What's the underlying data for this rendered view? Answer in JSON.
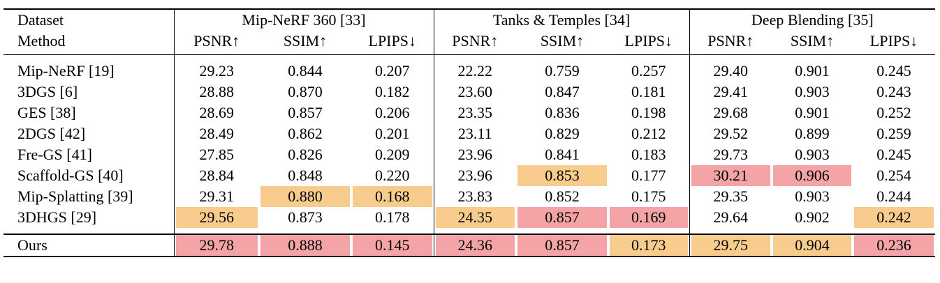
{
  "header": {
    "row1_label": "Dataset",
    "row2_label": "Method",
    "groups": [
      "Mip-NeRF 360 [33]",
      "Tanks & Temples [34]",
      "Deep Blending [35]"
    ],
    "metrics": [
      "PSNR↑",
      "SSIM↑",
      "LPIPS↓",
      "PSNR↑",
      "SSIM↑",
      "LPIPS↓",
      "PSNR↑",
      "SSIM↑",
      "LPIPS↓"
    ]
  },
  "highlight_colors": {
    "first": "#f4a4a6",
    "second": "#f8cc8c"
  },
  "rows": [
    {
      "method": "Mip-NeRF [19]",
      "values": [
        "29.23",
        "0.844",
        "0.207",
        "22.22",
        "0.759",
        "0.257",
        "29.40",
        "0.901",
        "0.245"
      ],
      "hl": [
        "",
        "",
        "",
        "",
        "",
        "",
        "",
        "",
        ""
      ]
    },
    {
      "method": "3DGS [6]",
      "values": [
        "28.88",
        "0.870",
        "0.182",
        "23.60",
        "0.847",
        "0.181",
        "29.41",
        "0.903",
        "0.243"
      ],
      "hl": [
        "",
        "",
        "",
        "",
        "",
        "",
        "",
        "",
        ""
      ]
    },
    {
      "method": "GES [38]",
      "values": [
        "28.69",
        "0.857",
        "0.206",
        "23.35",
        "0.836",
        "0.198",
        "29.68",
        "0.901",
        "0.252"
      ],
      "hl": [
        "",
        "",
        "",
        "",
        "",
        "",
        "",
        "",
        ""
      ]
    },
    {
      "method": "2DGS [42]",
      "values": [
        "28.49",
        "0.862",
        "0.201",
        "23.11",
        "0.829",
        "0.212",
        "29.52",
        "0.899",
        "0.259"
      ],
      "hl": [
        "",
        "",
        "",
        "",
        "",
        "",
        "",
        "",
        ""
      ]
    },
    {
      "method": "Fre-GS [41]",
      "values": [
        "27.85",
        "0.826",
        "0.209",
        "23.96",
        "0.841",
        "0.183",
        "29.73",
        "0.903",
        "0.245"
      ],
      "hl": [
        "",
        "",
        "",
        "",
        "",
        "",
        "",
        "",
        ""
      ]
    },
    {
      "method": "Scaffold-GS [40]",
      "values": [
        "28.84",
        "0.848",
        "0.220",
        "23.96",
        "0.853",
        "0.177",
        "30.21",
        "0.906",
        "0.254"
      ],
      "hl": [
        "",
        "",
        "",
        "",
        "second",
        "",
        "first",
        "first",
        ""
      ]
    },
    {
      "method": "Mip-Splatting [39]",
      "values": [
        "29.31",
        "0.880",
        "0.168",
        "23.83",
        "0.852",
        "0.175",
        "29.35",
        "0.903",
        "0.244"
      ],
      "hl": [
        "",
        "second",
        "second",
        "",
        "",
        "",
        "",
        "",
        ""
      ]
    },
    {
      "method": "3DHGS [29]",
      "values": [
        "29.56",
        "0.873",
        "0.178",
        "24.35",
        "0.857",
        "0.169",
        "29.64",
        "0.902",
        "0.242"
      ],
      "hl": [
        "second",
        "",
        "",
        "second",
        "first",
        "first",
        "",
        "",
        "second"
      ]
    }
  ],
  "ours": {
    "method": "Ours",
    "values": [
      "29.78",
      "0.888",
      "0.145",
      "24.36",
      "0.857",
      "0.173",
      "29.75",
      "0.904",
      "0.236"
    ],
    "hl": [
      "first",
      "first",
      "first",
      "first",
      "first",
      "second",
      "second",
      "second",
      "first"
    ]
  }
}
